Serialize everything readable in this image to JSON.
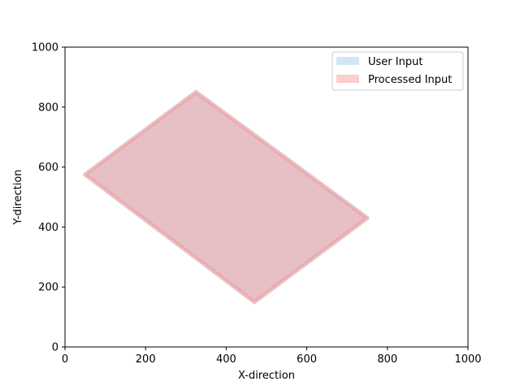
{
  "chart_data": {
    "type": "area",
    "title": "",
    "xlabel": "X-direction",
    "ylabel": "Y-direction",
    "xlim": [
      0,
      1000
    ],
    "ylim": [
      0,
      1000
    ],
    "xticks": [
      0,
      200,
      400,
      600,
      800,
      1000
    ],
    "yticks": [
      0,
      200,
      400,
      600,
      800,
      1000
    ],
    "xtick_labels": [
      "0",
      "200",
      "400",
      "600",
      "800",
      "1000"
    ],
    "ytick_labels": [
      "0",
      "200",
      "400",
      "600",
      "800",
      "1000"
    ],
    "grid": false,
    "legend_position": "top-right",
    "series": [
      {
        "name": "User Input",
        "color": "#a6cee3",
        "opacity": 0.5,
        "polygon": [
          [
            50,
            575
          ],
          [
            325,
            850
          ],
          [
            750,
            430
          ],
          [
            470,
            150
          ]
        ]
      },
      {
        "name": "Processed Input",
        "color": "#fb9a99",
        "opacity": 0.5,
        "polygon": [
          [
            50,
            575
          ],
          [
            325,
            850
          ],
          [
            750,
            430
          ],
          [
            470,
            150
          ]
        ]
      }
    ]
  }
}
